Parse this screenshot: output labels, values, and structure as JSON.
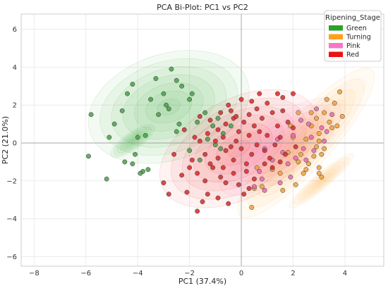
{
  "chart_data": {
    "type": "scatter",
    "title": "PCA Bi-Plot: PC1 vs PC2",
    "xlabel": "PC1 (37.4%)",
    "ylabel": "PC2 (21.0%)",
    "xlim": [
      -8.5,
      5.5
    ],
    "ylim": [
      -6.5,
      6.8
    ],
    "xticks": [
      -8,
      -6,
      -4,
      -2,
      0,
      2,
      4
    ],
    "yticks": [
      -6,
      -4,
      -2,
      0,
      2,
      4,
      6
    ],
    "grid": true,
    "reference_lines": {
      "x": 0,
      "y": 0
    },
    "legend": {
      "title": "Ripening_Stage",
      "placement": "top-right"
    },
    "series": [
      {
        "name": "Green",
        "color": "#2ca02c",
        "point_color": "#4a9e4a",
        "points": [
          [
            -5.8,
            1.5
          ],
          [
            -5.9,
            -0.7
          ],
          [
            -5.1,
            0.3
          ],
          [
            -4.9,
            1.0
          ],
          [
            -4.6,
            1.7
          ],
          [
            -4.4,
            2.6
          ],
          [
            -4.2,
            3.1
          ],
          [
            -4.1,
            -0.6
          ],
          [
            -4.0,
            0.3
          ],
          [
            -3.8,
            -1.5
          ],
          [
            -3.6,
            -1.4
          ],
          [
            -3.7,
            0.4
          ],
          [
            -3.5,
            2.3
          ],
          [
            -3.3,
            3.4
          ],
          [
            -3.2,
            1.5
          ],
          [
            -3.0,
            2.6
          ],
          [
            -2.9,
            2.0
          ],
          [
            -2.5,
            3.3
          ],
          [
            -2.3,
            3.0
          ],
          [
            -2.0,
            2.3
          ],
          [
            -1.9,
            2.6
          ],
          [
            -2.4,
            1.0
          ],
          [
            -1.7,
            1.1
          ],
          [
            -1.4,
            1.6
          ],
          [
            -1.1,
            0.9
          ],
          [
            -0.9,
            1.3
          ],
          [
            -0.7,
            0.5
          ],
          [
            -0.8,
            -0.3
          ],
          [
            -2.7,
            3.9
          ],
          [
            -2.8,
            1.8
          ],
          [
            -2.0,
            -0.4
          ],
          [
            -1.6,
            -0.9
          ],
          [
            -1.3,
            0.2
          ],
          [
            -4.5,
            -1.0
          ],
          [
            -3.9,
            -1.6
          ],
          [
            -4.2,
            -1.1
          ],
          [
            -5.2,
            -1.9
          ],
          [
            -2.5,
            0.6
          ],
          [
            -0.4,
            0.9
          ],
          [
            -1.0,
            -0.1
          ]
        ]
      },
      {
        "name": "Turning",
        "color": "#ff9f1c",
        "point_color": "#f0a040",
        "points": [
          [
            2.2,
            1.6
          ],
          [
            2.5,
            0.2
          ],
          [
            2.7,
            0.9
          ],
          [
            2.9,
            1.3
          ],
          [
            3.0,
            0.5
          ],
          [
            3.2,
            1.6
          ],
          [
            3.4,
            1.1
          ],
          [
            3.3,
            2.3
          ],
          [
            3.6,
            2.1
          ],
          [
            3.8,
            2.7
          ],
          [
            3.9,
            1.4
          ],
          [
            2.3,
            -0.6
          ],
          [
            2.6,
            -1.1
          ],
          [
            2.4,
            -1.6
          ],
          [
            2.9,
            -0.2
          ],
          [
            3.0,
            -1.3
          ],
          [
            3.2,
            -0.3
          ],
          [
            2.8,
            -0.7
          ],
          [
            3.1,
            -1.8
          ],
          [
            3.5,
            0.8
          ],
          [
            3.1,
            -0.6
          ],
          [
            2.0,
            0.3
          ],
          [
            1.8,
            -0.5
          ],
          [
            1.5,
            -1.6
          ],
          [
            1.2,
            -1.4
          ],
          [
            2.1,
            -2.2
          ],
          [
            1.6,
            -2.5
          ],
          [
            0.6,
            -1.3
          ],
          [
            0.8,
            -2.3
          ],
          [
            0.5,
            -2.4
          ],
          [
            1.9,
            0.9
          ],
          [
            3.0,
            0.1
          ],
          [
            2.7,
            1.6
          ],
          [
            3.7,
            0.9
          ],
          [
            2.2,
            -1.0
          ],
          [
            0.4,
            -3.4
          ],
          [
            3.0,
            -1.6
          ],
          [
            2.5,
            -1.4
          ]
        ]
      },
      {
        "name": "Pink",
        "color": "#f777c4",
        "point_color": "#e868ae",
        "points": [
          [
            2.0,
            0.4
          ],
          [
            2.3,
            1.2
          ],
          [
            2.7,
            0.3
          ],
          [
            3.1,
            0.8
          ],
          [
            3.3,
            0.6
          ],
          [
            3.5,
            1.5
          ],
          [
            1.6,
            -0.5
          ],
          [
            1.8,
            -1.1
          ],
          [
            2.1,
            -0.8
          ],
          [
            2.4,
            -0.3
          ],
          [
            1.4,
            0.2
          ],
          [
            1.2,
            -0.9
          ],
          [
            0.9,
            -0.3
          ],
          [
            0.7,
            -1.5
          ],
          [
            0.8,
            -1.9
          ],
          [
            2.5,
            -0.9
          ],
          [
            2.6,
            1.0
          ],
          [
            2.9,
            1.8
          ],
          [
            1.5,
            -2.1
          ],
          [
            1.9,
            -1.8
          ],
          [
            0.5,
            -2.3
          ],
          [
            0.9,
            -2.5
          ],
          [
            3.2,
            0.1
          ],
          [
            2.8,
            -0.4
          ]
        ]
      },
      {
        "name": "Red",
        "color": "#ee1111",
        "point_color": "#d42a2a",
        "points": [
          [
            -1.2,
            1.2
          ],
          [
            -0.9,
            0.7
          ],
          [
            -0.6,
            1.0
          ],
          [
            -0.4,
            1.7
          ],
          [
            -0.3,
            1.3
          ],
          [
            -0.1,
            0.6
          ],
          [
            0.1,
            1.1
          ],
          [
            0.3,
            1.5
          ],
          [
            0.4,
            2.2
          ],
          [
            0.6,
            1.8
          ],
          [
            0.8,
            1.3
          ],
          [
            1.0,
            2.1
          ],
          [
            1.2,
            1.6
          ],
          [
            1.4,
            0.9
          ],
          [
            1.6,
            2.4
          ],
          [
            1.8,
            1.1
          ],
          [
            2.0,
            2.6
          ],
          [
            -0.6,
            -0.4
          ],
          [
            -0.3,
            -0.9
          ],
          [
            0.0,
            -0.3
          ],
          [
            0.2,
            -1.1
          ],
          [
            0.4,
            -0.6
          ],
          [
            0.6,
            -0.1
          ],
          [
            0.9,
            -0.4
          ],
          [
            1.1,
            -0.8
          ],
          [
            1.3,
            -0.1
          ],
          [
            -1.4,
            -0.6
          ],
          [
            -1.6,
            0.1
          ],
          [
            -1.8,
            0.3
          ],
          [
            -2.0,
            -1.3
          ],
          [
            -1.7,
            -1.6
          ],
          [
            -1.4,
            -2.0
          ],
          [
            -1.1,
            -1.3
          ],
          [
            -0.8,
            -1.8
          ],
          [
            -0.6,
            -2.1
          ],
          [
            -0.3,
            -1.6
          ],
          [
            -0.1,
            -2.2
          ],
          [
            0.1,
            -2.7
          ],
          [
            0.3,
            -2.4
          ],
          [
            0.5,
            -1.9
          ],
          [
            -1.3,
            -2.7
          ],
          [
            -1.5,
            -3.1
          ],
          [
            -1.7,
            -3.6
          ],
          [
            -2.1,
            -2.6
          ],
          [
            -2.3,
            -1.7
          ],
          [
            -2.8,
            -2.7
          ],
          [
            -3.0,
            -2.1
          ],
          [
            -0.5,
            -3.2
          ],
          [
            -0.9,
            -2.9
          ],
          [
            0.2,
            -1.5
          ],
          [
            0.7,
            0.6
          ],
          [
            1.0,
            0.4
          ],
          [
            1.5,
            0.3
          ],
          [
            1.7,
            -0.6
          ],
          [
            2.1,
            -0.2
          ],
          [
            -0.7,
            0.3
          ],
          [
            -1.0,
            0.1
          ],
          [
            -0.2,
            0.1
          ],
          [
            0.3,
            0.4
          ],
          [
            0.5,
            0.9
          ],
          [
            -0.4,
            -0.2
          ],
          [
            -0.9,
            -0.8
          ],
          [
            -1.2,
            -1.1
          ],
          [
            -0.7,
            -1.3
          ],
          [
            1.2,
            -1.3
          ],
          [
            1.5,
            -1.0
          ],
          [
            0.9,
            -1.1
          ],
          [
            -1.6,
            1.4
          ],
          [
            -1.3,
            0.5
          ],
          [
            -0.5,
            2.0
          ],
          [
            0.0,
            2.3
          ],
          [
            1.6,
            1.7
          ],
          [
            2.0,
            0.8
          ],
          [
            -2.6,
            -0.6
          ],
          [
            -2.2,
            0.7
          ],
          [
            -1.9,
            -0.9
          ],
          [
            -0.2,
            1.4
          ],
          [
            0.7,
            2.6
          ],
          [
            1.4,
            2.6
          ],
          [
            -0.8,
            1.6
          ]
        ]
      }
    ],
    "density_contours": [
      {
        "series": "Green",
        "center": [
          -2.8,
          1.9
        ],
        "rx": 3.2,
        "ry": 2.8,
        "rotation_deg": 18
      },
      {
        "series": "Green",
        "center": [
          -4.2,
          0.1
        ],
        "rx": 1.0,
        "ry": 0.45,
        "rotation_deg": 35
      },
      {
        "series": "Red",
        "center": [
          -0.1,
          -0.3
        ],
        "rx": 3.3,
        "ry": 2.6,
        "rotation_deg": 28
      },
      {
        "series": "Pink",
        "center": [
          1.5,
          -0.2
        ],
        "rx": 2.8,
        "ry": 1.5,
        "rotation_deg": 36
      },
      {
        "series": "Turning",
        "center": [
          2.5,
          0.0
        ],
        "rx": 3.8,
        "ry": 1.3,
        "rotation_deg": 48
      },
      {
        "series": "Turning",
        "center": [
          3.1,
          -2.0
        ],
        "rx": 1.6,
        "ry": 0.4,
        "rotation_deg": 40
      }
    ]
  }
}
